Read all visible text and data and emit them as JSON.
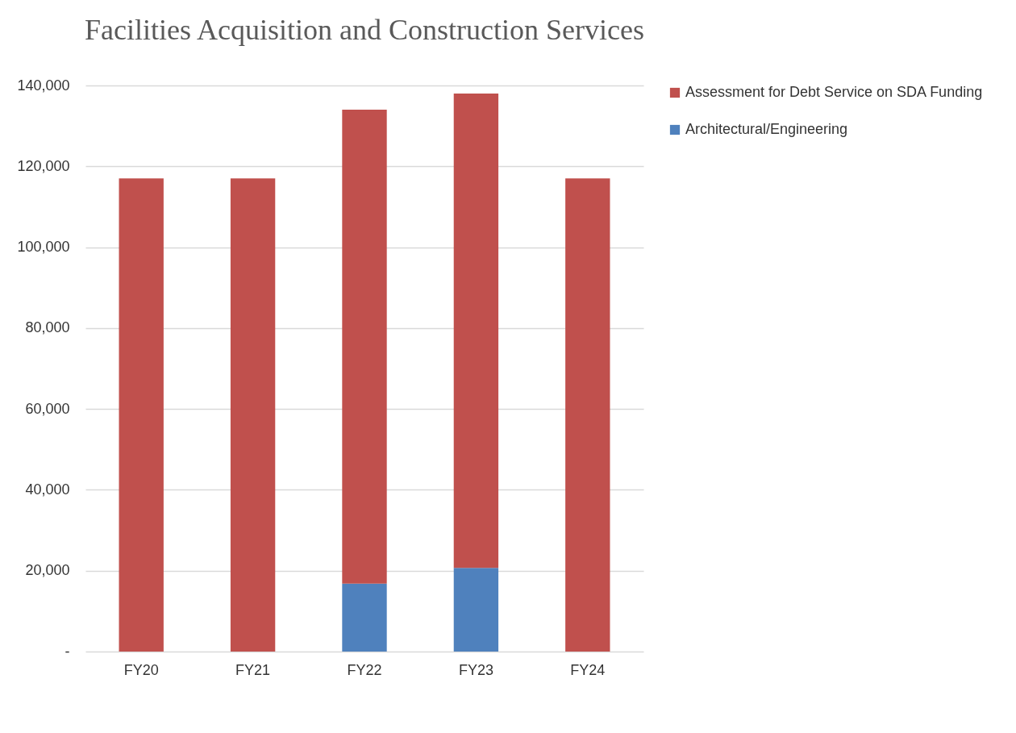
{
  "chart_data": {
    "type": "bar",
    "title": "Facilities Acquisition and Construction Services",
    "categories": [
      "FY20",
      "FY21",
      "FY22",
      "FY23",
      "FY24"
    ],
    "stacked": true,
    "series": [
      {
        "name": "Architectural/Engineering",
        "color": "#4f81bd",
        "values": [
          0,
          0,
          16800,
          20700,
          0
        ]
      },
      {
        "name": "Assessment for Debt Service on SDA Funding",
        "color": "#c0504d",
        "values": [
          117000,
          117000,
          117200,
          117300,
          117000
        ]
      }
    ],
    "ylim": [
      0,
      140000
    ],
    "yticks": [
      {
        "value": 0,
        "label": "-"
      },
      {
        "value": 20000,
        "label": "20,000"
      },
      {
        "value": 40000,
        "label": "40,000"
      },
      {
        "value": 60000,
        "label": "60,000"
      },
      {
        "value": 80000,
        "label": "80,000"
      },
      {
        "value": 100000,
        "label": "100,000"
      },
      {
        "value": 120000,
        "label": "120,000"
      },
      {
        "value": 140000,
        "label": "140,000"
      }
    ],
    "grid": "y",
    "legend": "right"
  }
}
